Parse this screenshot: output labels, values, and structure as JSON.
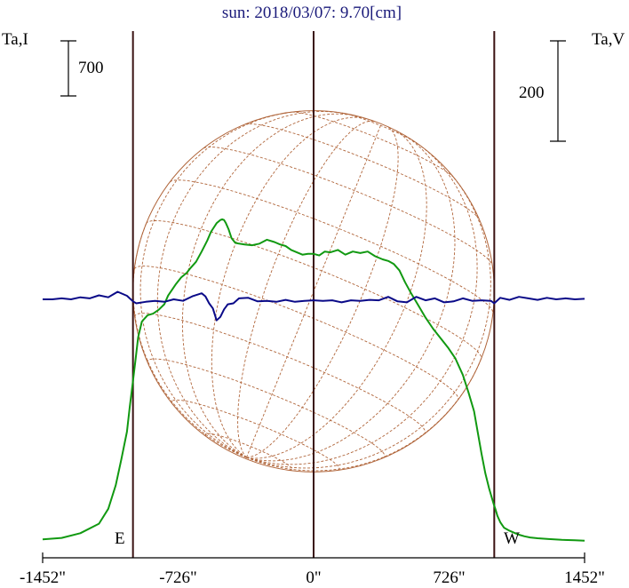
{
  "chart_data": {
    "type": "line",
    "title": "sun: 2018/03/07: 9.70[cm]",
    "y_left_label": "Ta,I",
    "y_right_label": "Ta,V",
    "x_ticks": [
      "-1452\"",
      "-726\"",
      "0\"",
      "726\"",
      "1452\""
    ],
    "x_tick_values": [
      -1452,
      -726,
      0,
      726,
      1452
    ],
    "xlim": [
      -1452,
      1452
    ],
    "limb_labels": {
      "east": "E",
      "west": "W"
    },
    "limb_x": [
      -968,
      968
    ],
    "scale_bars": [
      {
        "label": "700",
        "axis": "Ta,I"
      },
      {
        "label": "200",
        "axis": "Ta,V"
      }
    ],
    "series": [
      {
        "axis": "Ta,I",
        "color": "#119911",
        "x": [
          -1452,
          -1350,
          -1250,
          -1150,
          -1100,
          -1060,
          -1030,
          -1000,
          -985,
          -970,
          -955,
          -940,
          -920,
          -890,
          -860,
          -830,
          -800,
          -780,
          -740,
          -710,
          -680,
          -660,
          -630,
          -600,
          -570,
          -550,
          -520,
          -500,
          -490,
          -480,
          -470,
          -455,
          -440,
          -420,
          -400,
          -370,
          -330,
          -290,
          -250,
          -210,
          -180,
          -150,
          -120,
          -90,
          -60,
          -30,
          0,
          30,
          60,
          90,
          130,
          170,
          210,
          250,
          290,
          330,
          370,
          400,
          430,
          460,
          490,
          520,
          560,
          600,
          640,
          680,
          720,
          760,
          800,
          830,
          860,
          880,
          900,
          920,
          940,
          955,
          965,
          975,
          985,
          1000,
          1020,
          1050,
          1080,
          1100,
          1130,
          1160,
          1200,
          1260,
          1330,
          1400,
          1452
        ],
        "y": [
          30,
          50,
          110,
          230,
          420,
          720,
          1050,
          1400,
          1720,
          2000,
          2300,
          2600,
          2800,
          2880,
          2900,
          2950,
          3020,
          3130,
          3270,
          3360,
          3420,
          3480,
          3560,
          3690,
          3830,
          3940,
          4050,
          4090,
          4100,
          4090,
          4050,
          3970,
          3860,
          3800,
          3790,
          3780,
          3770,
          3790,
          3840,
          3810,
          3780,
          3760,
          3710,
          3680,
          3650,
          3660,
          3660,
          3640,
          3690,
          3680,
          3710,
          3650,
          3690,
          3670,
          3690,
          3630,
          3590,
          3570,
          3530,
          3450,
          3300,
          3170,
          3010,
          2850,
          2710,
          2590,
          2470,
          2330,
          2120,
          1900,
          1660,
          1390,
          1120,
          870,
          680,
          560,
          480,
          410,
          330,
          250,
          180,
          140,
          110,
          90,
          70,
          55,
          45,
          35,
          25,
          20,
          15
        ]
      },
      {
        "axis": "Ta,V",
        "color": "#0a0a88",
        "x": [
          -1452,
          -1400,
          -1350,
          -1300,
          -1250,
          -1200,
          -1150,
          -1100,
          -1050,
          -1000,
          -968,
          -950,
          -900,
          -850,
          -800,
          -750,
          -700,
          -650,
          -600,
          -580,
          -560,
          -540,
          -520,
          -500,
          -480,
          -460,
          -430,
          -400,
          -350,
          -300,
          -250,
          -200,
          -150,
          -100,
          -50,
          0,
          50,
          100,
          150,
          200,
          250,
          300,
          350,
          400,
          450,
          500,
          550,
          600,
          650,
          700,
          750,
          800,
          850,
          900,
          950,
          968,
          1000,
          1050,
          1100,
          1150,
          1200,
          1250,
          1300,
          1350,
          1400,
          1452
        ],
        "y": [
          0,
          0,
          2,
          0,
          4,
          2,
          8,
          4,
          15,
          7,
          -4,
          -8,
          -5,
          -3,
          -5,
          0,
          -3,
          6,
          12,
          6,
          -8,
          -18,
          -42,
          -35,
          -20,
          -10,
          -8,
          2,
          3,
          -4,
          -3,
          -5,
          -1,
          -5,
          -3,
          -2,
          -3,
          -2,
          -6,
          -2,
          -3,
          -1,
          -2,
          5,
          -4,
          -6,
          5,
          -2,
          2,
          -6,
          -4,
          2,
          -3,
          -2,
          -3,
          -8,
          3,
          -1,
          5,
          2,
          -1,
          3,
          0,
          2,
          0,
          1
        ]
      }
    ]
  }
}
